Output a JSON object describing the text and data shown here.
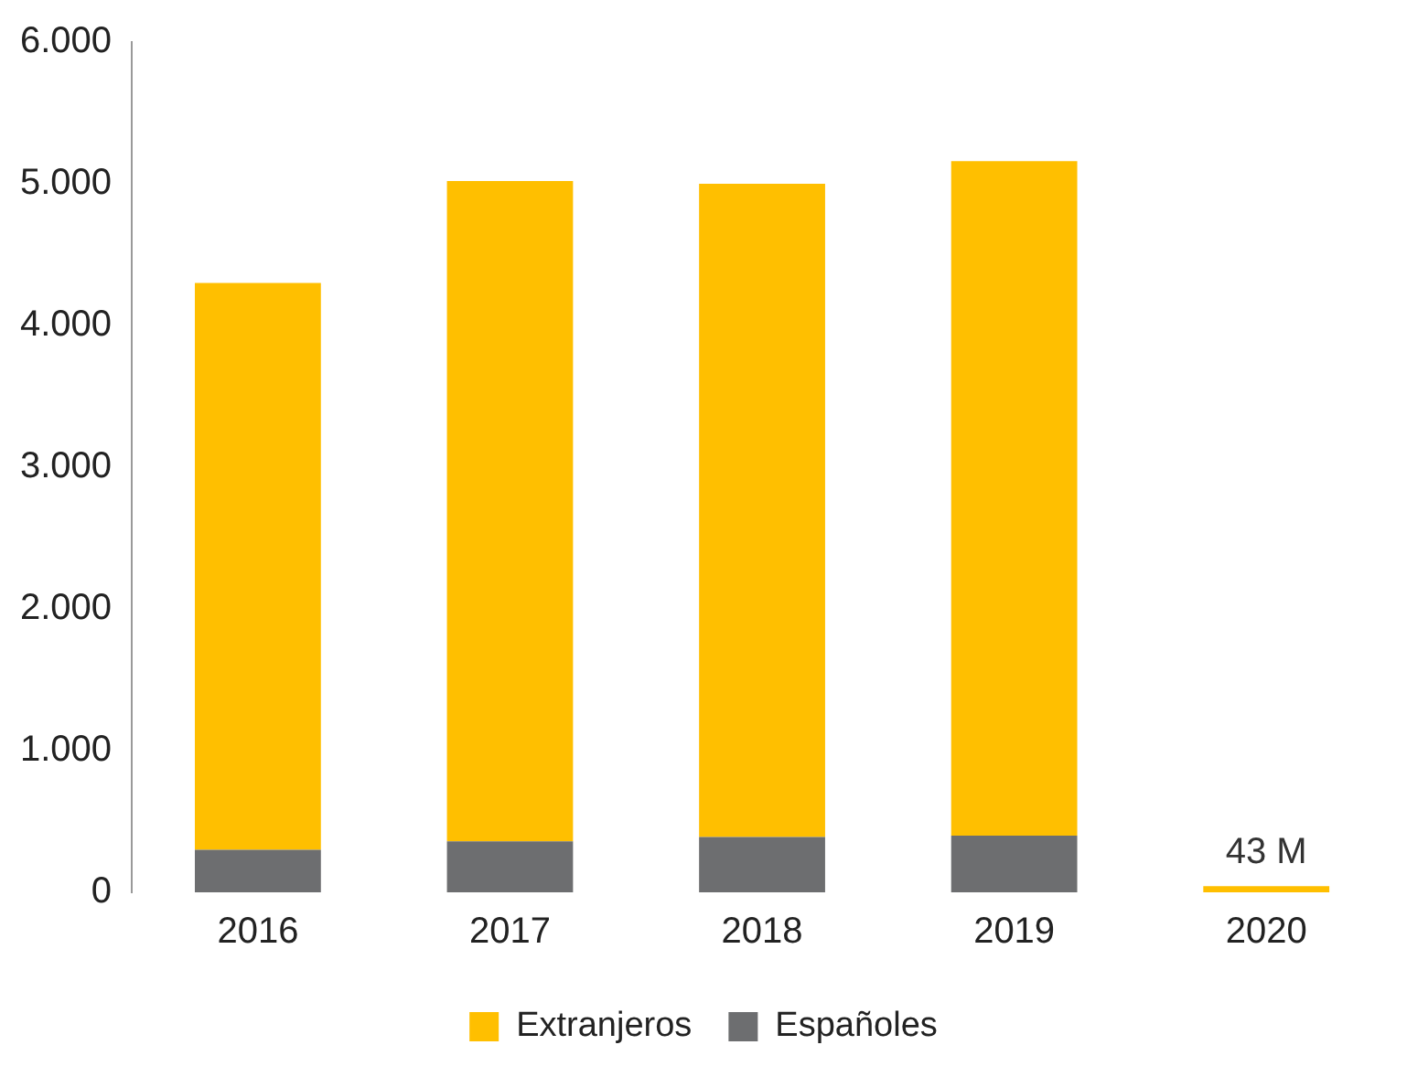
{
  "chart_data": {
    "type": "bar",
    "stacked": true,
    "categories": [
      "2016",
      "2017",
      "2018",
      "2019",
      "2020"
    ],
    "series": [
      {
        "name": "Españoles",
        "color": "#6d6e70",
        "values": [
          300,
          360,
          390,
          400,
          null
        ]
      },
      {
        "name": "Extranjeros",
        "color": "#ffbf00",
        "values": [
          4000,
          4660,
          4610,
          4760,
          43
        ]
      }
    ],
    "ylim": [
      0,
      6000
    ],
    "yticks": [
      {
        "value": 0,
        "label": "0"
      },
      {
        "value": 1000,
        "label": "1.000"
      },
      {
        "value": 2000,
        "label": "2.000"
      },
      {
        "value": 3000,
        "label": "3.000"
      },
      {
        "value": 4000,
        "label": "4.000"
      },
      {
        "value": 5000,
        "label": "5.000"
      },
      {
        "value": 6000,
        "label": "6.000"
      }
    ],
    "annotations": [
      {
        "text": "43 M",
        "x": "2020",
        "y": 43
      }
    ],
    "grid": false,
    "legend": "bottom"
  }
}
